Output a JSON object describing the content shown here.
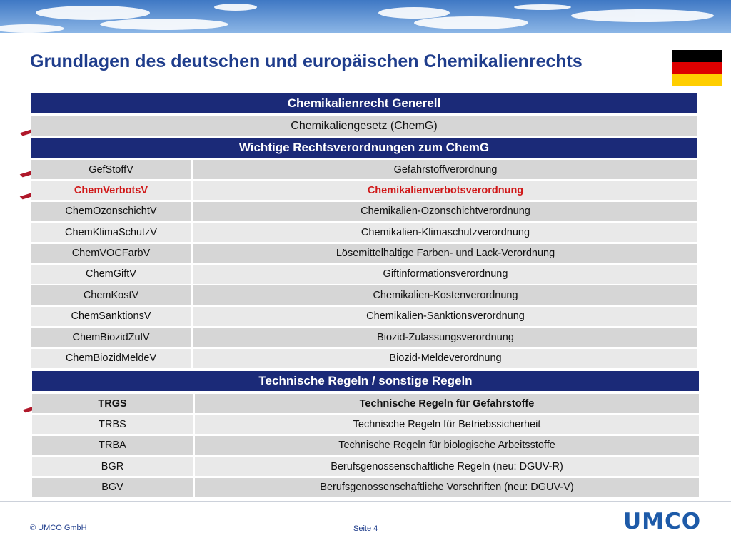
{
  "header": {
    "title": "Grundlagen des deutschen und europäischen Chemikalienrechts"
  },
  "section1": {
    "heading": "Chemikalienrecht Generell",
    "law": "Chemikaliengesetz (ChemG)"
  },
  "section2": {
    "heading": "Wichtige Rechtsverordnungen zum ChemG",
    "rows": [
      [
        "GefStoffV",
        "Gefahrstoffverordnung"
      ],
      [
        "ChemVerbotsV",
        "Chemikalienverbotsverordnung"
      ],
      [
        "ChemOzonschichtV",
        "Chemikalien-Ozonschichtverordnung"
      ],
      [
        "ChemKlimaSchutzV",
        "Chemikalien-Klimaschutzverordnung"
      ],
      [
        "ChemVOCFarbV",
        "Lösemittelhaltige Farben- und Lack-Verordnung"
      ],
      [
        "ChemGiftV",
        "Giftinformationsverordnung"
      ],
      [
        "ChemKostV",
        "Chemikalien-Kostenverordnung"
      ],
      [
        "ChemSanktionsV",
        "Chemikalien-Sanktionsverordnung"
      ],
      [
        "ChemBiozidZulV",
        "Biozid-Zulassungsverordnung"
      ],
      [
        "ChemBiozidMeldeV",
        "Biozid-Meldeverordnung"
      ]
    ]
  },
  "section3": {
    "heading": "Technische Regeln / sonstige Regeln",
    "rows": [
      [
        "TRGS",
        "Technische Regeln für Gefahrstoffe"
      ],
      [
        "TRBS",
        "Technische Regeln für Betriebssicherheit"
      ],
      [
        "TRBA",
        "Technische Regeln für biologische Arbeitsstoffe"
      ],
      [
        "BGR",
        "Berufsgenossenschaftliche Regeln (neu: DGUV-R)"
      ],
      [
        "BGV",
        "Berufsgenossenschaftliche Vorschriften (neu: DGUV-V)"
      ]
    ]
  },
  "footer": {
    "copyright": "© UMCO GmbH",
    "page": "Seite 4",
    "logo": "UMCO"
  }
}
